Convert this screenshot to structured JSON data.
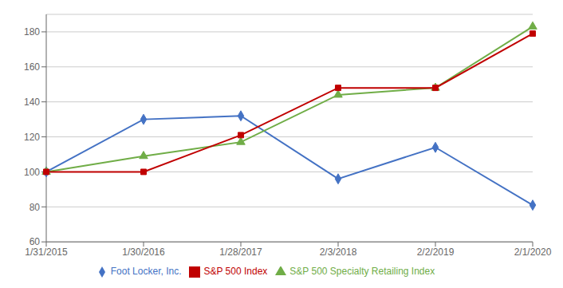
{
  "chart_data": {
    "type": "line",
    "categories": [
      "1/31/2015",
      "1/30/2016",
      "1/28/2017",
      "2/3/2018",
      "2/2/2019",
      "2/1/2020"
    ],
    "series": [
      {
        "name": "Foot Locker, Inc.",
        "color": "#4472C4",
        "marker": "diamond",
        "values": [
          100,
          130,
          132,
          96,
          114,
          81
        ]
      },
      {
        "name": "S&P 500 Specialty Retailing Index",
        "color": "#70AD47",
        "marker": "triangle",
        "values": [
          100,
          109,
          117,
          144,
          148,
          183
        ]
      },
      {
        "name": "S&P 500 Index",
        "color": "#C00000",
        "marker": "square",
        "values": [
          100,
          100,
          121,
          148,
          148,
          179
        ]
      }
    ],
    "ylim": [
      60,
      190
    ],
    "yticks": [
      60,
      80,
      100,
      120,
      140,
      160,
      180
    ],
    "grid": true,
    "legend": "bottom"
  }
}
